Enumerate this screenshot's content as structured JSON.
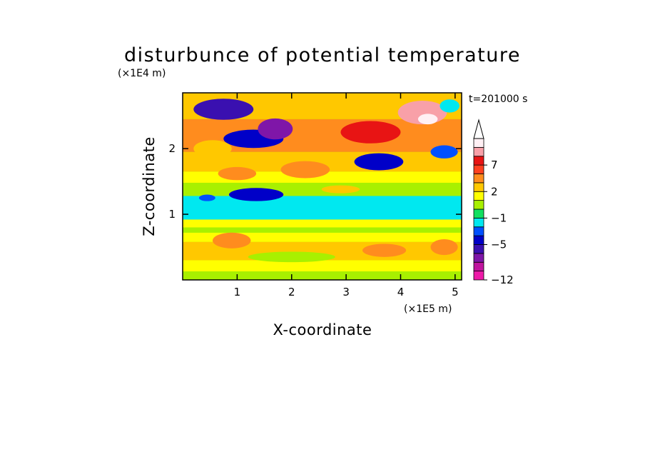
{
  "chart_data": {
    "type": "heatmap",
    "title": "disturbunce of potential temperature",
    "xlabel": "X-coordinate",
    "ylabel": "Z-coordinate",
    "x_unit": "(×1E5 m)",
    "y_unit": "(×1E4 m)",
    "time_label": "t=201000 s",
    "x_range": [
      0,
      5.12
    ],
    "y_range": [
      0,
      2.85
    ],
    "x_ticks": [
      "1",
      "2",
      "3",
      "4",
      "5"
    ],
    "y_ticks": [
      "1",
      "2"
    ],
    "x_tick_values": [
      1,
      2,
      3,
      4,
      5
    ],
    "y_tick_values": [
      1,
      2
    ],
    "grid": false,
    "colorbar": {
      "placement": "right",
      "extend_max": true,
      "levels": [
        -12,
        -10,
        -8,
        -6,
        -5,
        -4,
        -3,
        -1,
        0,
        1,
        2,
        3,
        5,
        7,
        9,
        11
      ],
      "labels": [
        "7",
        "2",
        "−1",
        "−5",
        "−12"
      ],
      "label_values": [
        7,
        2,
        -1,
        -5,
        -12
      ],
      "colors": [
        "#ee1aa8",
        "#c0149e",
        "#7f16a8",
        "#3a10b0",
        "#0000c8",
        "#0050ff",
        "#00e8f0",
        "#10e060",
        "#a8f000",
        "#ffff00",
        "#ffc800",
        "#ff8c1e",
        "#ff4020",
        "#e81414",
        "#f8a0a8",
        "#fff0f4"
      ]
    },
    "layers": [
      {
        "z": [
          0.02,
          0.13
        ],
        "value": 0.3
      },
      {
        "z": [
          0.13,
          0.3
        ],
        "value": 1.4
      },
      {
        "z": [
          0.3,
          0.58
        ],
        "value": 2.6
      },
      {
        "z": [
          0.58,
          0.72
        ],
        "value": 1.4
      },
      {
        "z": [
          0.72,
          0.8
        ],
        "value": 0.3
      },
      {
        "z": [
          0.8,
          0.92
        ],
        "value": 1.5
      },
      {
        "z": [
          0.92,
          1.28
        ],
        "value": -1.5
      },
      {
        "z": [
          1.28,
          1.48
        ],
        "value": 0.5
      },
      {
        "z": [
          1.48,
          1.65
        ],
        "value": 1.4
      },
      {
        "z": [
          1.65,
          1.95
        ],
        "value": 2.6
      },
      {
        "z": [
          1.95,
          2.45
        ],
        "value": 3.5
      },
      {
        "z": [
          2.45,
          2.85
        ],
        "value": 2.2
      }
    ],
    "features": [
      {
        "x": 0.75,
        "z": 2.6,
        "rx": 0.55,
        "rz": 0.16,
        "value": -5.5
      },
      {
        "x": 1.3,
        "z": 2.15,
        "rx": 0.55,
        "rz": 0.14,
        "value": -4.5
      },
      {
        "x": 1.7,
        "z": 2.3,
        "rx": 0.32,
        "rz": 0.16,
        "value": -6.5
      },
      {
        "x": 0.55,
        "z": 2.0,
        "rx": 0.35,
        "rz": 0.13,
        "value": 2.5
      },
      {
        "x": 1.0,
        "z": 1.62,
        "rx": 0.35,
        "rz": 0.1,
        "value": 4.0
      },
      {
        "x": 1.35,
        "z": 1.3,
        "rx": 0.5,
        "rz": 0.1,
        "value": -5.0
      },
      {
        "x": 0.45,
        "z": 1.25,
        "rx": 0.15,
        "rz": 0.05,
        "value": -4.0
      },
      {
        "x": 2.25,
        "z": 1.68,
        "rx": 0.45,
        "rz": 0.13,
        "value": 4.0
      },
      {
        "x": 3.45,
        "z": 2.25,
        "rx": 0.55,
        "rz": 0.17,
        "value": 7.0
      },
      {
        "x": 3.6,
        "z": 1.8,
        "rx": 0.45,
        "rz": 0.13,
        "value": -5.0
      },
      {
        "x": 4.4,
        "z": 2.55,
        "rx": 0.45,
        "rz": 0.18,
        "value": 9.0
      },
      {
        "x": 4.5,
        "z": 2.45,
        "rx": 0.18,
        "rz": 0.08,
        "value": 11.0
      },
      {
        "x": 4.8,
        "z": 1.95,
        "rx": 0.25,
        "rz": 0.1,
        "value": -4.0
      },
      {
        "x": 4.9,
        "z": 2.65,
        "rx": 0.18,
        "rz": 0.1,
        "value": -3.0
      },
      {
        "x": 2.9,
        "z": 1.38,
        "rx": 0.35,
        "rz": 0.06,
        "value": 2.5
      },
      {
        "x": 0.9,
        "z": 0.6,
        "rx": 0.35,
        "rz": 0.12,
        "value": 4.0
      },
      {
        "x": 3.7,
        "z": 0.45,
        "rx": 0.4,
        "rz": 0.1,
        "value": 4.0
      },
      {
        "x": 4.8,
        "z": 0.5,
        "rx": 0.25,
        "rz": 0.12,
        "value": 4.0
      },
      {
        "x": 2.0,
        "z": 0.35,
        "rx": 0.8,
        "rz": 0.08,
        "value": 0.3
      }
    ]
  }
}
